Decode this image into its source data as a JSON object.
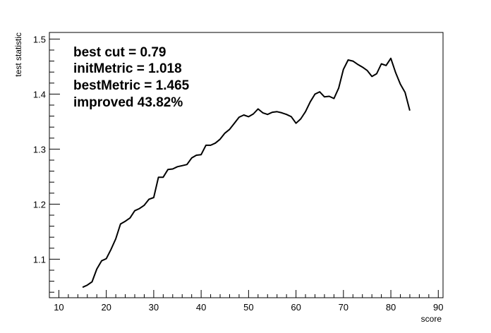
{
  "chart_data": {
    "type": "line",
    "xlabel": "score",
    "ylabel": "test statistic",
    "xlim": [
      8,
      91
    ],
    "ylim": [
      1.03,
      1.512
    ],
    "x_ticks": [
      10,
      20,
      30,
      40,
      50,
      60,
      70,
      80,
      90
    ],
    "y_ticks": [
      1.1,
      1.2,
      1.3,
      1.4,
      1.5
    ],
    "x_tick_labels": [
      "10",
      "20",
      "30",
      "40",
      "50",
      "60",
      "70",
      "80",
      "90"
    ],
    "y_tick_labels": [
      "1.1",
      "1.2",
      "1.3",
      "1.4",
      "1.5"
    ],
    "grid": false,
    "annotations": [
      "best cut = 0.79",
      "initMetric = 1.018",
      "bestMetric = 1.465",
      "improved 43.82%"
    ],
    "series": [
      {
        "x": [
          15,
          16,
          17,
          18,
          19,
          20,
          21,
          22,
          23,
          24,
          25,
          26,
          27,
          28,
          29,
          30,
          31,
          32,
          33,
          34,
          35,
          36,
          37,
          38,
          39,
          40,
          41,
          42,
          43,
          44,
          45,
          46,
          47,
          48,
          49,
          50,
          51,
          52,
          53,
          54,
          55,
          56,
          57,
          58,
          59,
          60,
          61,
          62,
          63,
          64,
          65,
          66,
          67,
          68,
          69,
          70,
          71,
          72,
          73,
          74,
          75,
          76,
          77,
          78,
          79,
          80,
          81,
          82,
          83,
          84
        ],
        "values": [
          1.049,
          1.053,
          1.059,
          1.082,
          1.097,
          1.101,
          1.118,
          1.137,
          1.164,
          1.169,
          1.175,
          1.188,
          1.192,
          1.198,
          1.209,
          1.212,
          1.249,
          1.249,
          1.263,
          1.264,
          1.268,
          1.27,
          1.272,
          1.284,
          1.289,
          1.29,
          1.307,
          1.307,
          1.311,
          1.318,
          1.329,
          1.336,
          1.347,
          1.358,
          1.362,
          1.359,
          1.364,
          1.373,
          1.366,
          1.363,
          1.367,
          1.368,
          1.366,
          1.363,
          1.359,
          1.347,
          1.355,
          1.368,
          1.386,
          1.4,
          1.404,
          1.395,
          1.396,
          1.392,
          1.411,
          1.445,
          1.462,
          1.46,
          1.454,
          1.449,
          1.443,
          1.432,
          1.437,
          1.455,
          1.452,
          1.465,
          1.439,
          1.418,
          1.403,
          1.37
        ]
      }
    ]
  }
}
